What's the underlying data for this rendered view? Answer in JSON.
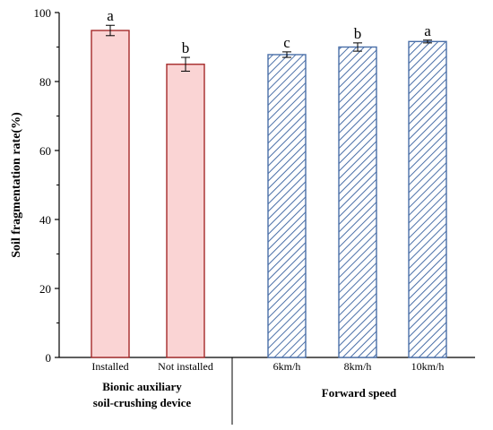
{
  "chart_data": {
    "type": "bar",
    "ylabel": "Soil fragmentation rate(%)",
    "ylim": [
      0,
      100
    ],
    "yticks": [
      0,
      20,
      40,
      60,
      80,
      100
    ],
    "grid": false,
    "groups": [
      {
        "label_lines": [
          "Bionic auxiliary",
          "soil-crushing device"
        ],
        "style": "solid",
        "fill_color": "#fad4d4",
        "edge_color": "#a52a2a",
        "bars": [
          {
            "category": "Installed",
            "value": 94.8,
            "error": 1.5,
            "letter": "a"
          },
          {
            "category": "Not installed",
            "value": 85.0,
            "error": 2.0,
            "letter": "b"
          }
        ]
      },
      {
        "label_lines": [
          "Forward speed"
        ],
        "style": "hatched",
        "fill_color": "#ffffff",
        "edge_color": "#4a6fa8",
        "bars": [
          {
            "category": "6km/h",
            "value": 87.8,
            "error": 0.8,
            "letter": "c"
          },
          {
            "category": "8km/h",
            "value": 90.0,
            "error": 1.2,
            "letter": "b"
          },
          {
            "category": "10km/h",
            "value": 91.6,
            "error": 0.4,
            "letter": "a"
          }
        ]
      }
    ]
  }
}
